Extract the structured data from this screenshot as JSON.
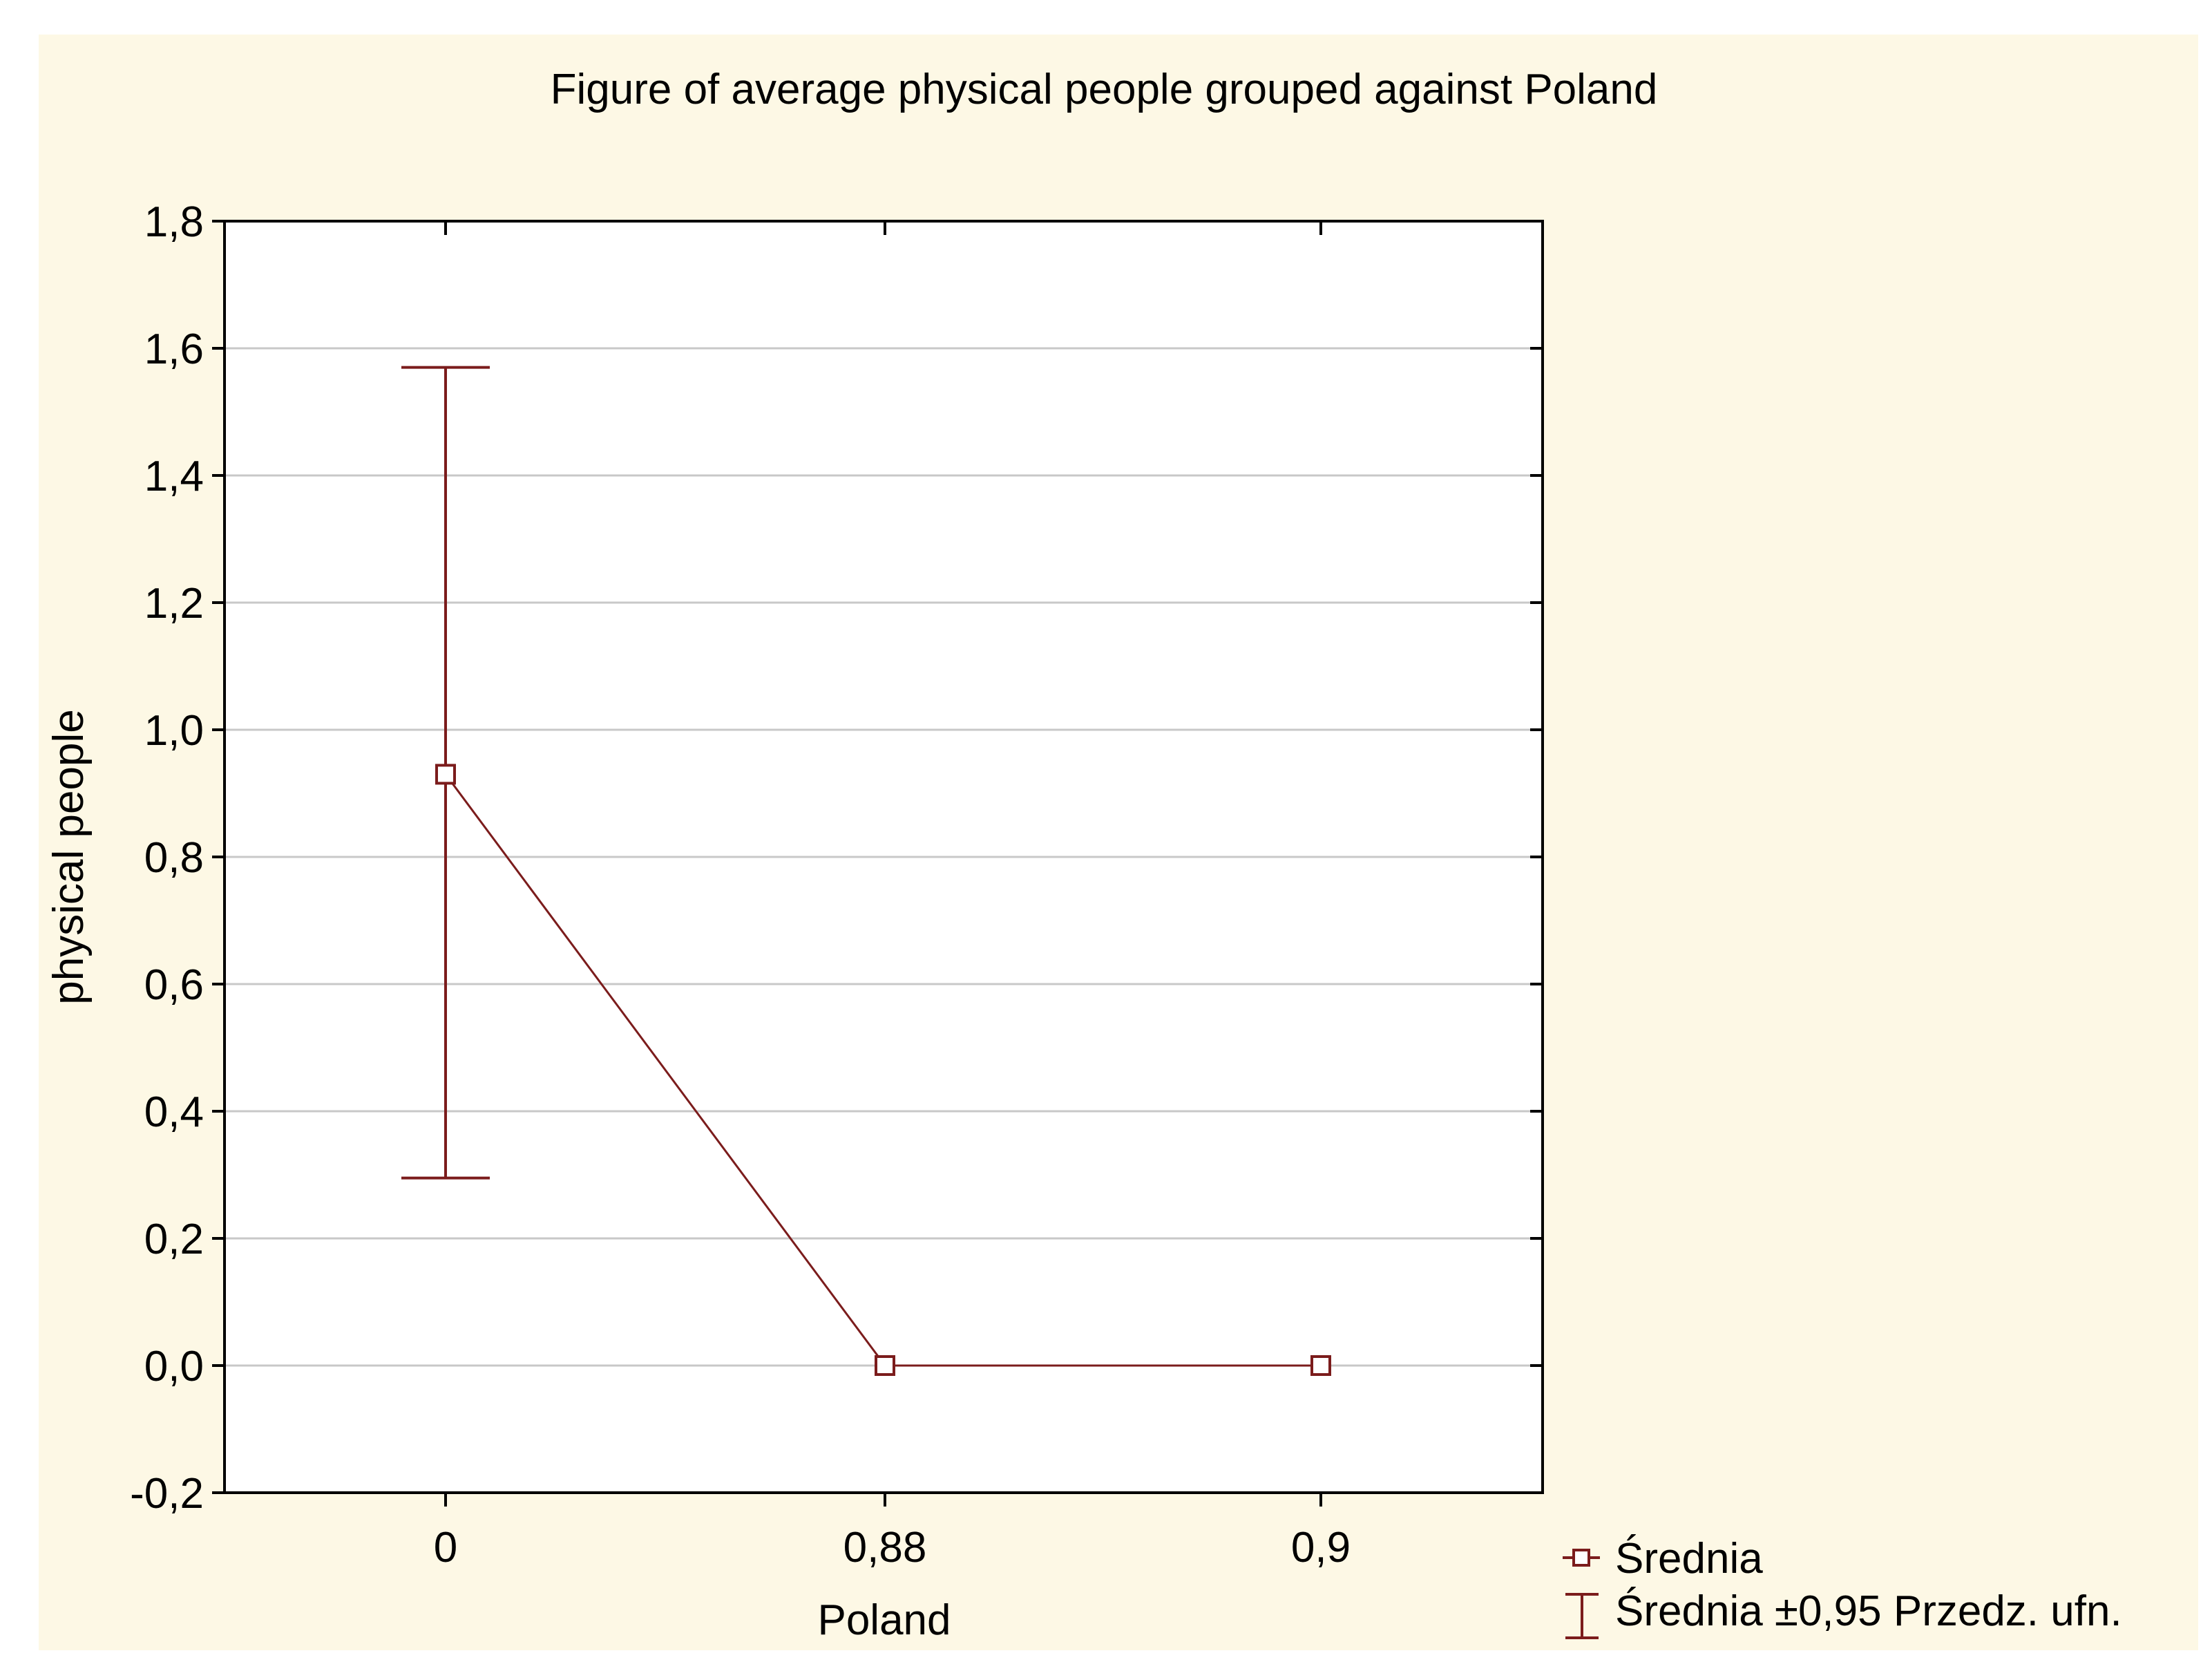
{
  "chart_data": {
    "type": "line",
    "title": "Figure of average physical people grouped against Poland",
    "xlabel": "Poland",
    "ylabel": "physical people",
    "categories": [
      "0",
      "0,88",
      "0,9"
    ],
    "series": [
      {
        "name": "Średnia",
        "values": [
          0.93,
          0.0,
          0.0
        ],
        "ci_lower": [
          0.295,
          null,
          null
        ],
        "ci_upper": [
          1.57,
          null,
          null
        ]
      }
    ],
    "ylim": [
      -0.2,
      1.8
    ],
    "yticks": [
      -0.2,
      0.0,
      0.2,
      0.4,
      0.6,
      0.8,
      1.0,
      1.2,
      1.4,
      1.6,
      1.8
    ],
    "ytick_labels": [
      "-0,2",
      "0,0",
      "0,2",
      "0,4",
      "0,6",
      "0,8",
      "1,0",
      "1,2",
      "1,4",
      "1,6",
      "1,8"
    ],
    "grid": true,
    "legend": {
      "position": "bottom-right",
      "entries": [
        "Średnia",
        "Średnia ±0,95 Przedz. ufn."
      ]
    },
    "colors": {
      "series": "#7b1c1c",
      "grid": "#c8c8c8",
      "background": "#fdf8e5",
      "plot": "#ffffff"
    }
  }
}
